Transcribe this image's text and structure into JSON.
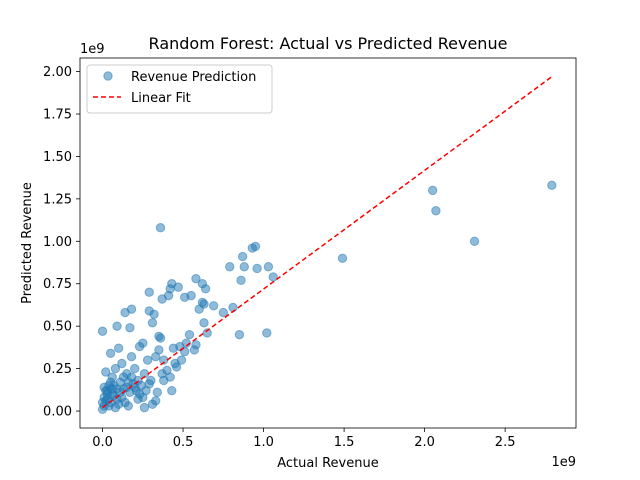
{
  "chart_data": {
    "type": "scatter",
    "title": "Random Forest: Actual vs Predicted Revenue",
    "xlabel": "Actual Revenue",
    "ylabel": "Predicted Revenue",
    "x_offset_text": "1e9",
    "y_offset_text": "1e9",
    "x_scale_factor": 1000000000,
    "y_scale_factor": 1000000000,
    "xlim": [
      -0.14,
      2.94
    ],
    "ylim": [
      -0.1,
      2.08
    ],
    "x_ticks": [
      0.0,
      0.5,
      1.0,
      1.5,
      2.0,
      2.5
    ],
    "x_tick_labels": [
      "0.0",
      "0.5",
      "1.0",
      "1.5",
      "2.0",
      "2.5"
    ],
    "y_ticks": [
      0.0,
      0.25,
      0.5,
      0.75,
      1.0,
      1.25,
      1.5,
      1.75,
      2.0
    ],
    "y_tick_labels": [
      "0.00",
      "0.25",
      "0.50",
      "0.75",
      "1.00",
      "1.25",
      "1.50",
      "1.75",
      "2.00"
    ],
    "grid": false,
    "legend_position": "top-left",
    "series": [
      {
        "name": "Revenue Prediction",
        "kind": "scatter",
        "color": "#1f77b4",
        "alpha": 0.5,
        "points": [
          [
            0.0,
            0.47
          ],
          [
            0.02,
            0.23
          ],
          [
            0.05,
            0.34
          ],
          [
            0.1,
            0.37
          ],
          [
            0.09,
            0.5
          ],
          [
            0.14,
            0.58
          ],
          [
            0.18,
            0.6
          ],
          [
            0.17,
            0.49
          ],
          [
            0.18,
            0.32
          ],
          [
            0.23,
            0.38
          ],
          [
            0.25,
            0.4
          ],
          [
            0.29,
            0.7
          ],
          [
            0.29,
            0.59
          ],
          [
            0.31,
            0.52
          ],
          [
            0.32,
            0.57
          ],
          [
            0.35,
            0.44
          ],
          [
            0.36,
            0.43
          ],
          [
            0.36,
            1.08
          ],
          [
            0.37,
            0.66
          ],
          [
            0.42,
            0.72
          ],
          [
            0.43,
            0.75
          ],
          [
            0.41,
            0.68
          ],
          [
            0.47,
            0.73
          ],
          [
            0.51,
            0.67
          ],
          [
            0.55,
            0.68
          ],
          [
            0.58,
            0.78
          ],
          [
            0.62,
            0.75
          ],
          [
            0.64,
            0.72
          ],
          [
            0.62,
            0.64
          ],
          [
            0.63,
            0.63
          ],
          [
            0.6,
            0.6
          ],
          [
            0.69,
            0.62
          ],
          [
            0.75,
            0.58
          ],
          [
            0.79,
            0.85
          ],
          [
            0.86,
            0.77
          ],
          [
            0.88,
            0.85
          ],
          [
            0.87,
            0.91
          ],
          [
            0.93,
            0.96
          ],
          [
            0.95,
            0.97
          ],
          [
            0.96,
            0.84
          ],
          [
            1.03,
            0.85
          ],
          [
            1.06,
            0.79
          ],
          [
            0.81,
            0.61
          ],
          [
            0.85,
            0.45
          ],
          [
            1.02,
            0.46
          ],
          [
            0.63,
            0.52
          ],
          [
            0.65,
            0.46
          ],
          [
            0.58,
            0.39
          ],
          [
            0.57,
            0.36
          ],
          [
            0.54,
            0.45
          ],
          [
            0.52,
            0.4
          ],
          [
            0.51,
            0.35
          ],
          [
            0.49,
            0.3
          ],
          [
            0.46,
            0.26
          ],
          [
            0.44,
            0.37
          ],
          [
            0.48,
            0.38
          ],
          [
            0.43,
            0.12
          ],
          [
            0.31,
            0.04
          ],
          [
            0.33,
            0.06
          ],
          [
            0.34,
            0.11
          ],
          [
            0.3,
            0.18
          ],
          [
            0.26,
            0.22
          ],
          [
            0.28,
            0.3
          ],
          [
            0.33,
            0.32
          ],
          [
            0.35,
            0.36
          ],
          [
            0.38,
            0.3
          ],
          [
            0.37,
            0.22
          ],
          [
            0.4,
            0.24
          ],
          [
            0.42,
            0.2
          ],
          [
            0.45,
            0.28
          ],
          [
            0.38,
            0.18
          ],
          [
            0.25,
            0.08
          ],
          [
            0.21,
            0.12
          ],
          [
            0.22,
            0.18
          ],
          [
            0.2,
            0.25
          ],
          [
            0.15,
            0.22
          ],
          [
            0.12,
            0.28
          ],
          [
            0.08,
            0.25
          ],
          [
            0.06,
            0.2
          ],
          [
            0.04,
            0.15
          ],
          [
            0.03,
            0.1
          ],
          [
            0.02,
            0.06
          ],
          [
            0.01,
            0.03
          ],
          [
            0.0,
            0.01
          ],
          [
            0.01,
            0.08
          ],
          [
            0.03,
            0.12
          ],
          [
            0.05,
            0.05
          ],
          [
            0.07,
            0.09
          ],
          [
            0.09,
            0.13
          ],
          [
            0.11,
            0.17
          ],
          [
            0.13,
            0.2
          ],
          [
            0.15,
            0.14
          ],
          [
            0.17,
            0.11
          ],
          [
            0.19,
            0.16
          ],
          [
            0.12,
            0.08
          ],
          [
            0.1,
            0.04
          ],
          [
            0.14,
            0.05
          ],
          [
            0.16,
            0.03
          ],
          [
            0.08,
            0.02
          ],
          [
            0.06,
            0.1
          ],
          [
            0.04,
            0.03
          ],
          [
            0.02,
            0.12
          ],
          [
            0.18,
            0.2
          ],
          [
            0.2,
            0.14
          ],
          [
            0.22,
            0.07
          ],
          [
            0.24,
            0.15
          ],
          [
            0.27,
            0.12
          ],
          [
            0.29,
            0.16
          ],
          [
            0.05,
            0.17
          ],
          [
            0.07,
            0.15
          ],
          [
            0.09,
            0.07
          ],
          [
            0.11,
            0.11
          ],
          [
            0.13,
            0.13
          ],
          [
            0.01,
            0.14
          ],
          [
            0.03,
            0.07
          ],
          [
            0.0,
            0.05
          ],
          [
            0.06,
            0.13
          ],
          [
            0.16,
            0.17
          ],
          [
            0.23,
            0.1
          ],
          [
            0.26,
            0.02
          ],
          [
            1.49,
            0.9
          ],
          [
            2.05,
            1.3
          ],
          [
            2.07,
            1.18
          ],
          [
            2.31,
            1.0
          ],
          [
            2.79,
            1.33
          ]
        ]
      },
      {
        "name": "Linear Fit",
        "kind": "line",
        "color": "#ff0000",
        "dashed": true,
        "points": [
          [
            0.0,
            0.02
          ],
          [
            2.79,
            1.97
          ]
        ]
      }
    ]
  }
}
